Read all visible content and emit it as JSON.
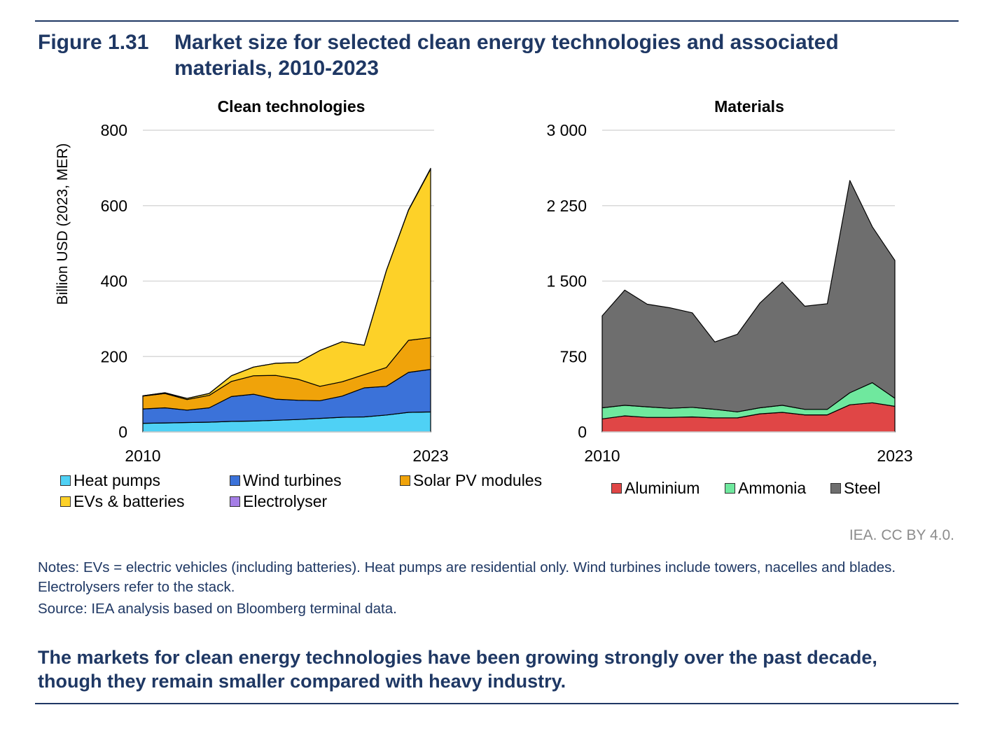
{
  "figure": {
    "number": "Figure 1.31",
    "title": "Market size for selected clean energy technologies and associated materials, 2010-2023"
  },
  "credit": "IEA. CC BY 4.0.",
  "notes": "Notes: EVs = electric vehicles (including batteries). Heat pumps are residential only. Wind turbines include towers, nacelles and blades. Electrolysers refer to the stack.",
  "source": "Source: IEA analysis based on Bloomberg terminal data.",
  "takeaway": "The markets for clean energy technologies have been growing strongly over the past decade, though they remain smaller compared with heavy industry.",
  "colors": {
    "heat_pumps": "#4fd1f5",
    "wind_turbines": "#3b72d9",
    "solar_pv": "#f0a30a",
    "evs": "#fdd128",
    "electrolyser": "#a57ee6",
    "aluminium": "#e04646",
    "ammonia": "#6fe89e",
    "steel": "#6e6e6e",
    "grid": "#d9d9d9",
    "heading": "#1f3864"
  },
  "chart_data": [
    {
      "type": "area",
      "stacked": true,
      "title": "Clean technologies",
      "ylabel": "Billion USD (2023, MER)",
      "ylim": [
        0,
        800
      ],
      "yticks": [
        0,
        200,
        400,
        600,
        800
      ],
      "ytick_labels": [
        "0",
        "200",
        "400",
        "600",
        "800"
      ],
      "x": [
        2010,
        2011,
        2012,
        2013,
        2014,
        2015,
        2016,
        2017,
        2018,
        2019,
        2020,
        2021,
        2022,
        2023
      ],
      "xtick_labels": [
        "2010",
        "2023"
      ],
      "series": [
        {
          "name": "Heat pumps",
          "color_key": "heat_pumps",
          "values": [
            23,
            24,
            25,
            26,
            28,
            29,
            31,
            33,
            36,
            39,
            40,
            45,
            52,
            53
          ]
        },
        {
          "name": "Wind turbines",
          "color_key": "wind_turbines",
          "values": [
            38,
            40,
            33,
            38,
            66,
            71,
            56,
            51,
            47,
            56,
            77,
            76,
            106,
            113
          ]
        },
        {
          "name": "Solar PV modules",
          "color_key": "solar_pv",
          "values": [
            34,
            38,
            28,
            33,
            40,
            49,
            63,
            56,
            38,
            38,
            35,
            50,
            85,
            84
          ]
        },
        {
          "name": "EVs & batteries",
          "color_key": "evs",
          "values": [
            1,
            2,
            3,
            5,
            15,
            23,
            32,
            44,
            95,
            106,
            78,
            257,
            345,
            447
          ]
        },
        {
          "name": "Electrolyser",
          "color_key": "electrolyser",
          "values": [
            0,
            0,
            0,
            0,
            0,
            0,
            0,
            0,
            0,
            0,
            0,
            0,
            1,
            2
          ]
        }
      ],
      "legend": "bottom"
    },
    {
      "type": "area",
      "stacked": true,
      "title": "Materials",
      "ylabel": "",
      "ylim": [
        0,
        3000
      ],
      "yticks": [
        0,
        750,
        1500,
        2250,
        3000
      ],
      "ytick_labels": [
        "0",
        "750",
        "1 500",
        "2 250",
        "3 000"
      ],
      "x": [
        2010,
        2011,
        2012,
        2013,
        2014,
        2015,
        2016,
        2017,
        2018,
        2019,
        2020,
        2021,
        2022,
        2023
      ],
      "xtick_labels": [
        "2010",
        "2023"
      ],
      "series": [
        {
          "name": "Aluminium",
          "color_key": "aluminium",
          "values": [
            130,
            160,
            145,
            145,
            150,
            140,
            140,
            180,
            195,
            170,
            170,
            270,
            290,
            255
          ]
        },
        {
          "name": "Ammonia",
          "color_key": "ammonia",
          "values": [
            110,
            105,
            105,
            90,
            95,
            85,
            60,
            60,
            70,
            55,
            55,
            120,
            200,
            80
          ]
        },
        {
          "name": "Steel",
          "color_key": "steel",
          "values": [
            915,
            1145,
            1020,
            1000,
            940,
            670,
            770,
            1040,
            1225,
            1025,
            1050,
            2110,
            1550,
            1370
          ]
        }
      ],
      "legend": "bottom"
    }
  ],
  "legend_labels": {
    "clean": [
      "Heat pumps",
      "Wind turbines",
      "Solar PV modules",
      "EVs & batteries",
      "Electrolyser"
    ],
    "materials": [
      "Aluminium",
      "Ammonia",
      "Steel"
    ]
  }
}
